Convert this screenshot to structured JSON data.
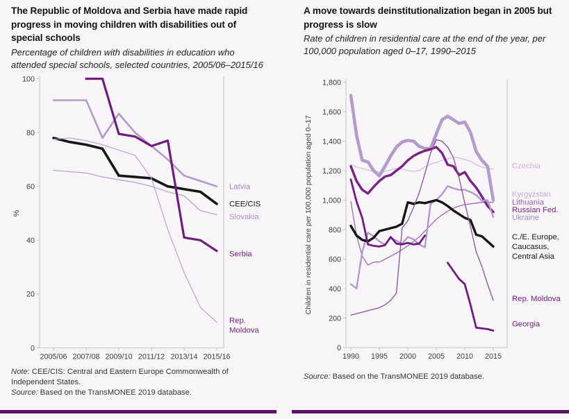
{
  "page": {
    "background": "#f7f5f7",
    "divider_color": "#5e1168"
  },
  "left_chart": {
    "title": "The Republic of Moldova and Serbia have made rapid progress in moving children with disabilities out of special schools",
    "subtitle": "Percentage of children with disabilities in education who attended special schools, selected countries, 2005/06–2015/16",
    "note_label": "Note:",
    "note_text": "CEE/CIS: Central and Eastern Europe Commonwealth of Independent States.",
    "source_label": "Source:",
    "source_text": "Based on the TransMONEE 2019 database.",
    "chart_data": {
      "type": "line",
      "title": "Percentage of children with disabilities in education who attended special schools",
      "xlabel": "",
      "ylabel": "%",
      "ylim": [
        0,
        100
      ],
      "ytick_step": 20,
      "grid": false,
      "legend_position": "right-of-plot",
      "x": [
        "2005/06",
        "2006/07",
        "2007/08",
        "2008/09",
        "2009/10",
        "2010/11",
        "2011/12",
        "2012/13",
        "2013/14",
        "2014/15",
        "2015/16"
      ],
      "x_tick_indices": [
        0,
        2,
        4,
        6,
        8,
        10
      ],
      "series": [
        {
          "name": "Latvia",
          "color": "#b09ac9",
          "label_color": "#a185bf",
          "width": 2.6,
          "label_value": 60,
          "label_lines": [
            "Latvia"
          ],
          "values": [
            92,
            92,
            92,
            78,
            87,
            80,
            75,
            70,
            64,
            62,
            60
          ]
        },
        {
          "name": "CEE/CIS",
          "color": "#161616",
          "label_color": "#161616",
          "width": 3.6,
          "label_value": 53.5,
          "label_lines": [
            "CEE/CIS"
          ],
          "values": [
            78,
            76.5,
            75.5,
            74,
            64,
            63.5,
            63,
            60,
            59,
            58,
            53.5
          ]
        },
        {
          "name": "Slovakia",
          "color": "#bfa7d3",
          "label_color": "#ab90c4",
          "width": 1.4,
          "label_value": 48.8,
          "label_lines": [
            "Slovakia"
          ],
          "values": [
            66,
            65.5,
            65,
            63.5,
            62.5,
            61.5,
            60,
            58,
            56.5,
            51,
            49.5
          ]
        },
        {
          "name": "Serbia",
          "color": "#701c7e",
          "label_color": "#701c7e",
          "width": 3.2,
          "label_value": 35,
          "label_lines": [
            "Serbia"
          ],
          "values": [
            null,
            null,
            100,
            100,
            79.5,
            78.5,
            75,
            77,
            41,
            40,
            36
          ]
        },
        {
          "name": "Rep. Moldova",
          "color": "#bca2d1",
          "label_color": "#701c7e",
          "width": 1.2,
          "label_value": 8.5,
          "label_lines": [
            "Rep.",
            "Moldova"
          ],
          "values": [
            77.5,
            78,
            77,
            75.5,
            73.5,
            71.5,
            63,
            44,
            28,
            15,
            9.5
          ]
        }
      ]
    }
  },
  "right_chart": {
    "title": "A move towards deinstitutionalization began in 2005 but progress is slow",
    "subtitle": "Rate of children in residential care at the end of the year, per 100,000 population aged 0–17, 1990–2015",
    "source_label": "Source:",
    "source_text": "Based on the TransMONEE 2019 database.",
    "chart_data": {
      "type": "line",
      "title": "Rate of children in residential care at the end of the year, per 100,000 population aged 0–17",
      "xlabel": "",
      "ylabel": "Children in residential care per 100,000 population aged  0–17",
      "ylim": [
        0,
        1800
      ],
      "ytick_step": 200,
      "y_format": "comma",
      "grid": false,
      "legend_position": "right-of-plot",
      "x": [
        "1990",
        "1991",
        "1992",
        "1993",
        "1994",
        "1995",
        "1996",
        "1997",
        "1998",
        "1999",
        "2000",
        "2001",
        "2002",
        "2003",
        "2004",
        "2005",
        "2006",
        "2007",
        "2008",
        "2009",
        "2010",
        "2011",
        "2012",
        "2013",
        "2014",
        "2015"
      ],
      "x_tick_indices": [
        0,
        5,
        10,
        15,
        20,
        25
      ],
      "series": [
        {
          "name": "Czechia",
          "color": "#cfbede",
          "label_color": "#c9b6d8",
          "width": 1.3,
          "label_value": 1235,
          "label_lines": [
            "Czechia"
          ],
          "values": [
            1240,
            1225,
            1215,
            1205,
            1195,
            1190,
            1195,
            1205,
            1215,
            1210,
            1200,
            1195,
            1200,
            1225,
            1245,
            1255,
            1270,
            1280,
            1290,
            1285,
            1275,
            1265,
            1240,
            1225,
            1215,
            1210
          ]
        },
        {
          "name": "Kyrgyzstan",
          "color": "#b39bca",
          "label_color": "#c2aad4",
          "width": 4.6,
          "label_value": 1042,
          "label_lines": [
            "Kyrgyzstan"
          ],
          "values": [
            1710,
            1440,
            1270,
            1260,
            1200,
            1165,
            1230,
            1300,
            1360,
            1395,
            1405,
            1400,
            1365,
            1350,
            1350,
            1450,
            1545,
            1570,
            1545,
            1520,
            1530,
            1460,
            1330,
            1270,
            1230,
            1000
          ]
        },
        {
          "name": "Lithuania",
          "color": "#9c6bb0",
          "label_color": "#9c64ad",
          "width": 1.3,
          "label_value": 988,
          "label_lines": [
            "Lithuania"
          ],
          "values": [
            990,
            760,
            620,
            560,
            580,
            580,
            600,
            620,
            640,
            665,
            690,
            720,
            750,
            790,
            830,
            870,
            900,
            925,
            945,
            960,
            970,
            975,
            980,
            985,
            985,
            985
          ]
        },
        {
          "name": "Russian Fed.",
          "color": "#7a2182",
          "label_color": "#7a2182",
          "width": 3.4,
          "label_value": 936,
          "label_lines": [
            "Russian Fed."
          ],
          "values": [
            1230,
            1130,
            1070,
            1045,
            1090,
            1130,
            1160,
            1170,
            1200,
            1230,
            1270,
            1300,
            1320,
            1335,
            1345,
            1360,
            1320,
            1240,
            1230,
            1170,
            1190,
            1130,
            1085,
            1025,
            960,
            920
          ]
        },
        {
          "name": "Ukraine",
          "color": "#b194c9",
          "label_color": "#a988c1",
          "width": 2.3,
          "label_value": 884,
          "label_lines": [
            "Ukraine"
          ],
          "values": [
            430,
            400,
            650,
            780,
            755,
            720,
            700,
            745,
            725,
            705,
            750,
            735,
            700,
            680,
            975,
            1000,
            1040,
            1095,
            1080,
            1070,
            1070,
            1055,
            1035,
            995,
            1000,
            885
          ]
        },
        {
          "name": "C./E. Europe, Caucasus, Central Asia",
          "color": "#161616",
          "label_color": "#161616",
          "width": 3.4,
          "label_value": 685,
          "label_lines": [
            "C./E. Europe,",
            "Caucasus,",
            "Central Asia"
          ],
          "values": [
            825,
            760,
            730,
            720,
            745,
            790,
            800,
            810,
            820,
            840,
            985,
            975,
            985,
            980,
            990,
            1000,
            985,
            960,
            930,
            905,
            880,
            865,
            765,
            755,
            720,
            685
          ]
        },
        {
          "name": "Rep. Moldova",
          "color": "#8b4d9e",
          "label_color": "#701c7e",
          "width": 1.3,
          "label_value": 334,
          "label_lines": [
            "Rep. Moldova"
          ],
          "values": [
            220,
            230,
            240,
            250,
            260,
            270,
            290,
            320,
            370,
            810,
            860,
            950,
            1050,
            1180,
            1320,
            1410,
            1400,
            1360,
            1290,
            1150,
            980,
            820,
            650,
            550,
            430,
            320
          ]
        },
        {
          "name": "Georgia",
          "color": "#701c7e",
          "label_color": "#701c7e",
          "width": 2.8,
          "label_value": 162,
          "label_lines": [
            "Georgia"
          ],
          "values": [
            1140,
            990,
            880,
            700,
            690,
            685,
            695,
            750,
            705,
            700,
            710,
            700,
            705,
            760,
            null,
            null,
            null,
            575,
            520,
            465,
            430,
            290,
            135,
            130,
            125,
            115
          ]
        }
      ]
    }
  }
}
